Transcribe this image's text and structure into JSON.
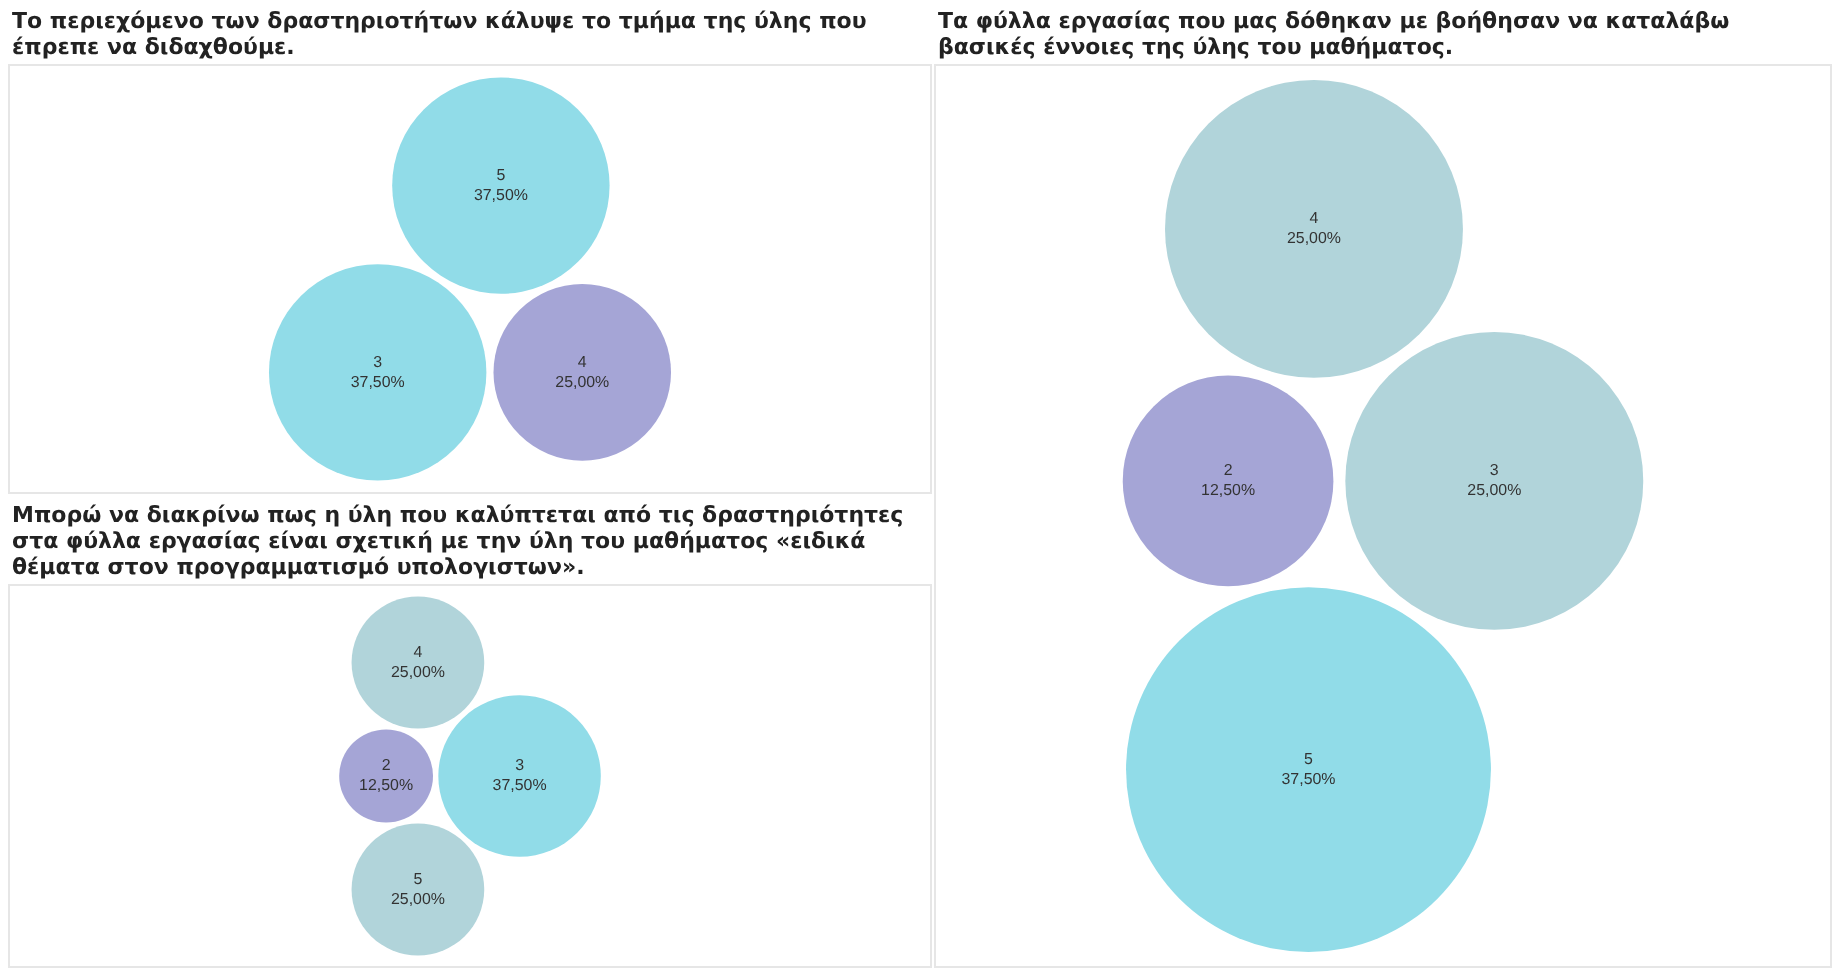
{
  "chart_data": [
    {
      "type": "other",
      "title": "Το περιεχόμενο των δραστηριοτήτων κάλυψε το τμήμα της ύλης που έπρεπε να διδαχθούμε.",
      "categories": [
        "3",
        "4",
        "5"
      ],
      "values": [
        37.5,
        25,
        37.5
      ],
      "colors": [
        "#91dce8",
        "#a5a5d6",
        "#91dce8"
      ],
      "value_labels": [
        "37,50%",
        "25,00%",
        "37,50%"
      ]
    },
    {
      "type": "other",
      "title": "Τα φύλλα εργασίας που μας δόθηκαν με βοήθησαν να καταλάβω βασικές έννοιες της ύλης του μαθήματος.",
      "categories": [
        "2",
        "3",
        "4",
        "5"
      ],
      "values": [
        12.5,
        25,
        25,
        37.5
      ],
      "colors": [
        "#a5a5d6",
        "#b1d4da",
        "#b1d4da",
        "#91dce8"
      ],
      "value_labels": [
        "12,50%",
        "25,00%",
        "25,00%",
        "37,50%"
      ]
    },
    {
      "type": "other",
      "title": "Μπορώ να διακρίνω πως η ύλη που καλύπτεται από τις δραστηριότητες στα φύλλα εργασίας είναι σχετική με την ύλη του μαθήματος «ειδικά θέματα στον προγραμματισμό υπολογιστων».",
      "categories": [
        "2",
        "3",
        "4",
        "5"
      ],
      "values": [
        12.5,
        37.5,
        25,
        25
      ],
      "colors": [
        "#a5a5d6",
        "#91dce8",
        "#b1d4da",
        "#b1d4da"
      ],
      "value_labels": [
        "12,50%",
        "37,50%",
        "25,00%",
        "25,00%"
      ]
    }
  ]
}
